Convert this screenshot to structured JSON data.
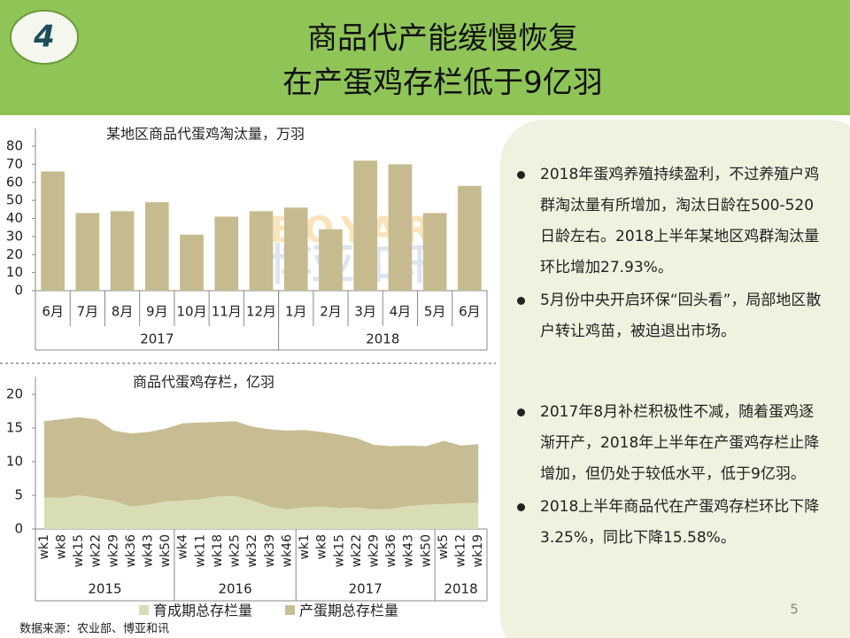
{
  "header": {
    "number": "4",
    "title_lines": [
      "商品代产能缓慢恢复",
      "在产蛋鸡存栏低于9亿羽"
    ]
  },
  "chart_data": [
    {
      "type": "bar",
      "title": "某地区商品代蛋鸡淘汰量，万羽",
      "color": "#c6bb8f",
      "groups": [
        {
          "label": "2017",
          "categories": [
            "6月",
            "7月",
            "8月",
            "9月",
            "10月",
            "11月",
            "12月"
          ]
        },
        {
          "label": "2018",
          "categories": [
            "1月",
            "2月",
            "3月",
            "4月",
            "5月",
            "6月"
          ]
        }
      ],
      "values": [
        66,
        43,
        44,
        49,
        31,
        41,
        44,
        46,
        34,
        72,
        70,
        43,
        58
      ],
      "ylim": [
        0,
        80
      ],
      "yticks": [
        0,
        10,
        20,
        30,
        40,
        50,
        60,
        70,
        80
      ]
    },
    {
      "type": "stacked_area",
      "title": "商品代蛋鸡存栏，亿羽",
      "groups": [
        {
          "label": "2015",
          "categories": [
            "wk1",
            "wk8",
            "wk15",
            "wk22",
            "wk29",
            "wk36",
            "wk43",
            "wk50"
          ]
        },
        {
          "label": "2016",
          "categories": [
            "wk4",
            "wk11",
            "wk18",
            "wk25",
            "wk32",
            "wk39",
            "wk46"
          ]
        },
        {
          "label": "2017",
          "categories": [
            "wk1",
            "wk8",
            "wk15",
            "wk22",
            "wk29",
            "wk36",
            "wk43",
            "wk50"
          ]
        },
        {
          "label": "2018",
          "categories": [
            "wk5",
            "wk12",
            "wk19"
          ]
        }
      ],
      "series": [
        {
          "name": "育成期总存栏量",
          "color": "#d9ddb6",
          "values": [
            4.7,
            4.6,
            5.0,
            4.6,
            4.2,
            3.3,
            3.6,
            4.1,
            4.2,
            4.4,
            4.8,
            4.9,
            4.2,
            3.3,
            2.9,
            3.2,
            3.3,
            3.1,
            3.2,
            2.9,
            3.0,
            3.4,
            3.6,
            3.7,
            3.8,
            3.9
          ]
        },
        {
          "name": "产蛋期总存栏量",
          "color": "#c8bd92",
          "values": [
            11.3,
            11.7,
            11.6,
            11.7,
            10.4,
            10.9,
            10.8,
            10.8,
            11.5,
            11.4,
            11.1,
            11.1,
            11.0,
            11.5,
            11.7,
            11.5,
            11.1,
            10.9,
            10.3,
            9.6,
            9.3,
            9.0,
            8.7,
            9.4,
            8.6,
            8.7
          ]
        }
      ],
      "ylim": [
        0,
        20
      ],
      "yticks": [
        0,
        5,
        10,
        15,
        20
      ]
    }
  ],
  "watermark": {
    "latin": "BOYAR",
    "chinese": "博亚和讯"
  },
  "bullets": [
    [
      "2018年蛋鸡养殖持续盈利，不过养殖户鸡群淘汰量有所增加，淘汰日龄在500-520日龄左右。2018上半年某地区鸡群淘汰量环比增加27.93%。",
      "5月份中央开启环保“回头看”，局部地区散户转让鸡苗，被迫退出市场。"
    ],
    [
      "2017年8月补栏积极性不减，随着蛋鸡逐渐开产，2018年上半年在产蛋鸡存栏止降增加，但仍处于较低水平，低于9亿羽。",
      "2018上半年商品代在产蛋鸡存栏环比下降3.25%，同比下降15.58%。"
    ]
  ],
  "page_number": "5",
  "source": "数据来源：农业部、博亚和讯"
}
